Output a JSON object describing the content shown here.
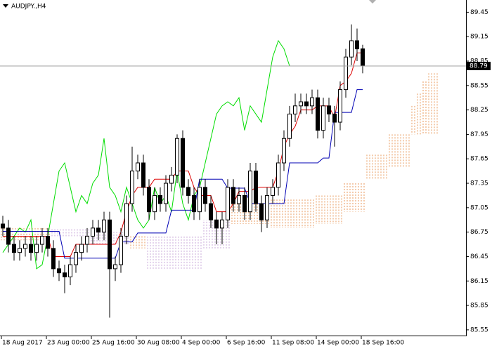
{
  "chart_data": {
    "type": "candlestick",
    "title": "AUDJPY.,H4",
    "categories": [
      "18 Aug 2017",
      null,
      null,
      null,
      null,
      null,
      null,
      null,
      "23 Aug 00:00",
      null,
      null,
      null,
      null,
      null,
      null,
      null,
      "25 Aug 16:00",
      null,
      null,
      null,
      null,
      null,
      null,
      null,
      "30 Aug 08:00",
      null,
      null,
      null,
      null,
      null,
      null,
      null,
      "4 Sep 00:00",
      null,
      null,
      null,
      null,
      null,
      null,
      null,
      "6 Sep 16:00",
      null,
      null,
      null,
      null,
      null,
      null,
      null,
      "11 Sep 08:00",
      null,
      null,
      null,
      null,
      null,
      null,
      null,
      "14 Sep 00:00",
      null,
      null,
      null,
      null,
      null,
      null,
      null,
      "18 Sep 16:00",
      null,
      null,
      null,
      null,
      null,
      null,
      null,
      null,
      null,
      null,
      null,
      null,
      null
    ],
    "open": [
      86.85,
      86.8,
      86.6,
      86.5,
      86.55,
      86.6,
      86.5,
      86.6,
      86.7,
      86.55,
      86.3,
      86.25,
      86.2,
      86.35,
      86.5,
      86.6,
      86.7,
      86.8,
      86.75,
      86.9,
      86.3,
      86.35,
      86.7,
      87.1,
      87.5,
      87.6,
      87.3,
      87.0,
      87.2,
      87.1,
      87.35,
      87.45,
      87.9,
      87.3,
      87.2,
      87.0,
      87.3,
      87.1,
      86.9,
      86.8,
      86.9,
      87.3,
      87.1,
      87.2,
      87.0,
      87.5,
      87.1,
      86.9,
      87.2,
      87.3,
      87.6,
      87.9,
      88.2,
      88.3,
      88.35,
      88.3,
      88.4,
      88.0,
      88.3,
      88.2,
      88.1,
      88.5,
      88.9,
      89.1,
      89.0,
      null,
      null,
      null,
      null,
      null,
      null,
      null,
      null,
      null,
      null,
      null,
      null,
      null
    ],
    "high": [
      86.95,
      86.9,
      86.7,
      86.65,
      86.7,
      86.7,
      86.7,
      86.8,
      86.8,
      86.65,
      86.4,
      86.35,
      86.45,
      86.6,
      86.7,
      86.8,
      86.9,
      86.9,
      87.0,
      87.0,
      86.45,
      86.8,
      87.2,
      87.8,
      87.7,
      87.7,
      87.4,
      87.3,
      87.3,
      87.45,
      87.55,
      87.95,
      88.0,
      87.4,
      87.3,
      87.4,
      87.4,
      87.2,
      87.0,
      87.0,
      87.4,
      87.4,
      87.3,
      87.3,
      87.6,
      87.6,
      87.2,
      87.3,
      87.4,
      87.7,
      88.0,
      88.3,
      88.45,
      88.45,
      88.45,
      88.5,
      88.5,
      88.4,
      88.4,
      88.3,
      88.6,
      89.0,
      89.3,
      89.25,
      89.05,
      null,
      null,
      null,
      null,
      null,
      null,
      null,
      null,
      null,
      null,
      null,
      null,
      null
    ],
    "low": [
      86.7,
      86.5,
      86.4,
      86.4,
      86.45,
      86.4,
      86.4,
      86.5,
      86.45,
      86.2,
      86.15,
      86.0,
      86.1,
      86.25,
      86.4,
      86.5,
      86.6,
      86.65,
      86.65,
      85.7,
      86.15,
      86.25,
      86.6,
      87.0,
      87.4,
      87.2,
      86.9,
      86.9,
      87.0,
      87.0,
      87.25,
      87.35,
      87.2,
      87.1,
      86.9,
      86.9,
      87.0,
      86.8,
      86.6,
      86.6,
      86.8,
      87.0,
      87.0,
      86.9,
      86.9,
      87.0,
      86.75,
      86.8,
      87.1,
      87.2,
      87.5,
      87.8,
      88.1,
      88.2,
      88.2,
      88.2,
      87.9,
      87.9,
      88.1,
      87.8,
      88.0,
      88.4,
      88.8,
      88.85,
      88.7,
      null,
      null,
      null,
      null,
      null,
      null,
      null,
      null,
      null,
      null,
      null,
      null,
      null
    ],
    "close": [
      86.8,
      86.6,
      86.5,
      86.55,
      86.6,
      86.5,
      86.6,
      86.7,
      86.55,
      86.3,
      86.25,
      86.2,
      86.35,
      86.5,
      86.6,
      86.7,
      86.8,
      86.75,
      86.9,
      86.3,
      86.35,
      86.7,
      87.1,
      87.5,
      87.6,
      87.3,
      87.0,
      87.2,
      87.1,
      87.35,
      87.45,
      87.9,
      87.3,
      87.2,
      87.0,
      87.3,
      87.1,
      86.9,
      86.8,
      86.9,
      87.3,
      87.1,
      87.2,
      87.0,
      87.5,
      87.1,
      86.9,
      87.2,
      87.3,
      87.6,
      87.9,
      88.2,
      88.3,
      88.35,
      88.3,
      88.4,
      88.0,
      88.3,
      88.2,
      88.1,
      88.5,
      88.9,
      89.1,
      89.0,
      88.79,
      null,
      null,
      null,
      null,
      null,
      null,
      null,
      null,
      null,
      null,
      null,
      null,
      null
    ],
    "up_color": "#ffffff",
    "down_color": "#000000",
    "lines": [
      {
        "color": "#00dd00",
        "values": [
          86.5,
          86.6,
          86.7,
          86.8,
          86.75,
          86.9,
          86.3,
          86.35,
          86.7,
          87.1,
          87.5,
          87.6,
          87.3,
          87.0,
          87.2,
          87.1,
          87.35,
          87.45,
          87.9,
          87.3,
          87.2,
          87.0,
          87.3,
          87.1,
          86.9,
          86.8,
          86.9,
          87.3,
          87.1,
          87.2,
          87.0,
          87.5,
          87.1,
          86.9,
          87.2,
          87.3,
          87.6,
          87.9,
          88.2,
          88.3,
          88.35,
          88.3,
          88.4,
          88.0,
          88.3,
          88.2,
          88.1,
          88.5,
          88.9,
          89.1,
          89.0,
          88.79,
          null,
          null,
          null,
          null,
          null,
          null,
          null,
          null,
          null,
          null,
          null,
          null,
          null,
          null,
          null,
          null,
          null,
          null,
          null,
          null,
          null,
          null,
          null,
          null,
          null,
          null
        ]
      },
      {
        "color": "#dd0000",
        "values": [
          86.7,
          86.7,
          86.7,
          86.7,
          86.7,
          86.7,
          86.7,
          86.7,
          86.7,
          86.45,
          86.45,
          86.45,
          86.45,
          86.6,
          86.6,
          86.6,
          86.6,
          86.6,
          86.6,
          86.6,
          86.6,
          86.75,
          87.0,
          87.2,
          87.3,
          87.3,
          87.3,
          87.4,
          87.4,
          87.4,
          87.4,
          87.5,
          87.5,
          87.5,
          87.3,
          87.2,
          87.2,
          87.2,
          87.0,
          87.0,
          87.0,
          87.1,
          87.25,
          87.25,
          87.25,
          87.3,
          87.3,
          87.3,
          87.3,
          87.5,
          87.8,
          87.95,
          88.05,
          88.25,
          88.25,
          88.25,
          88.3,
          88.3,
          88.3,
          88.15,
          88.55,
          88.6,
          88.7,
          88.95,
          88.95,
          null,
          null,
          null,
          null,
          null,
          null,
          null,
          null,
          null,
          null,
          null,
          null,
          null
        ]
      },
      {
        "color": "#0000b4",
        "values": [
          86.76,
          86.76,
          86.76,
          86.76,
          86.76,
          86.76,
          86.76,
          86.76,
          86.76,
          86.76,
          86.76,
          86.43,
          86.43,
          86.43,
          86.43,
          86.43,
          86.43,
          86.43,
          86.43,
          86.43,
          86.43,
          86.63,
          86.63,
          86.63,
          86.74,
          86.74,
          86.74,
          86.74,
          86.74,
          86.74,
          87.02,
          87.02,
          87.02,
          87.02,
          87.02,
          87.4,
          87.4,
          87.4,
          87.4,
          87.4,
          87.29,
          87.29,
          87.29,
          87.29,
          87.1,
          87.1,
          87.1,
          87.1,
          87.1,
          87.1,
          87.1,
          87.6,
          87.6,
          87.6,
          87.6,
          87.6,
          87.6,
          87.66,
          87.66,
          88.22,
          88.22,
          88.22,
          88.22,
          88.5,
          88.5,
          null,
          null,
          null,
          null,
          null,
          null,
          null,
          null,
          null,
          null,
          null,
          null,
          null
        ]
      }
    ],
    "cloud": {
      "up_color": "#e89a5c",
      "down_color": "#c9a9d9",
      "a": [
        86.8,
        86.8,
        86.8,
        86.8,
        86.8,
        86.8,
        86.8,
        86.8,
        86.8,
        86.7,
        86.7,
        86.7,
        86.7,
        86.7,
        86.7,
        86.7,
        86.6,
        86.6,
        86.6,
        86.6,
        86.6,
        86.6,
        86.6,
        86.7,
        86.7,
        86.7,
        86.3,
        86.3,
        86.3,
        86.3,
        86.3,
        86.3,
        86.3,
        86.3,
        86.3,
        86.3,
        86.55,
        86.55,
        86.55,
        86.55,
        86.55,
        87.1,
        87.1,
        87.1,
        87.1,
        87.1,
        87.1,
        87.1,
        87.15,
        87.15,
        87.15,
        87.15,
        87.15,
        87.15,
        87.15,
        87.15,
        87.2,
        87.2,
        87.2,
        87.2,
        87.2,
        87.35,
        87.35,
        87.35,
        87.35,
        87.7,
        87.7,
        87.7,
        87.7,
        87.95,
        87.95,
        87.95,
        87.95,
        88.3,
        88.45,
        88.6,
        88.7,
        88.7
      ],
      "b": [
        86.65,
        86.65,
        86.65,
        86.65,
        86.65,
        86.65,
        86.65,
        86.65,
        86.65,
        86.8,
        86.8,
        86.8,
        86.8,
        86.8,
        86.8,
        86.8,
        86.75,
        86.75,
        86.75,
        86.75,
        86.75,
        86.75,
        86.75,
        86.55,
        86.55,
        86.55,
        86.7,
        86.7,
        86.7,
        86.7,
        86.7,
        86.7,
        86.7,
        86.7,
        86.7,
        86.7,
        86.9,
        86.9,
        86.9,
        86.9,
        86.9,
        86.85,
        86.85,
        86.85,
        86.85,
        86.85,
        86.85,
        86.85,
        86.8,
        86.8,
        86.8,
        86.8,
        86.8,
        86.8,
        86.8,
        86.8,
        86.85,
        86.85,
        86.85,
        86.85,
        86.85,
        87.0,
        87.0,
        87.0,
        87.0,
        87.4,
        87.4,
        87.4,
        87.4,
        87.55,
        87.55,
        87.55,
        87.55,
        87.95,
        87.95,
        87.95,
        87.95,
        87.95
      ]
    },
    "current_price": 88.79,
    "ylim": [
      85.48,
      89.6
    ],
    "yticks": [
      89.45,
      89.15,
      88.85,
      88.55,
      88.25,
      87.95,
      87.65,
      87.35,
      87.05,
      86.75,
      86.45,
      86.15,
      85.85,
      85.55
    ]
  }
}
